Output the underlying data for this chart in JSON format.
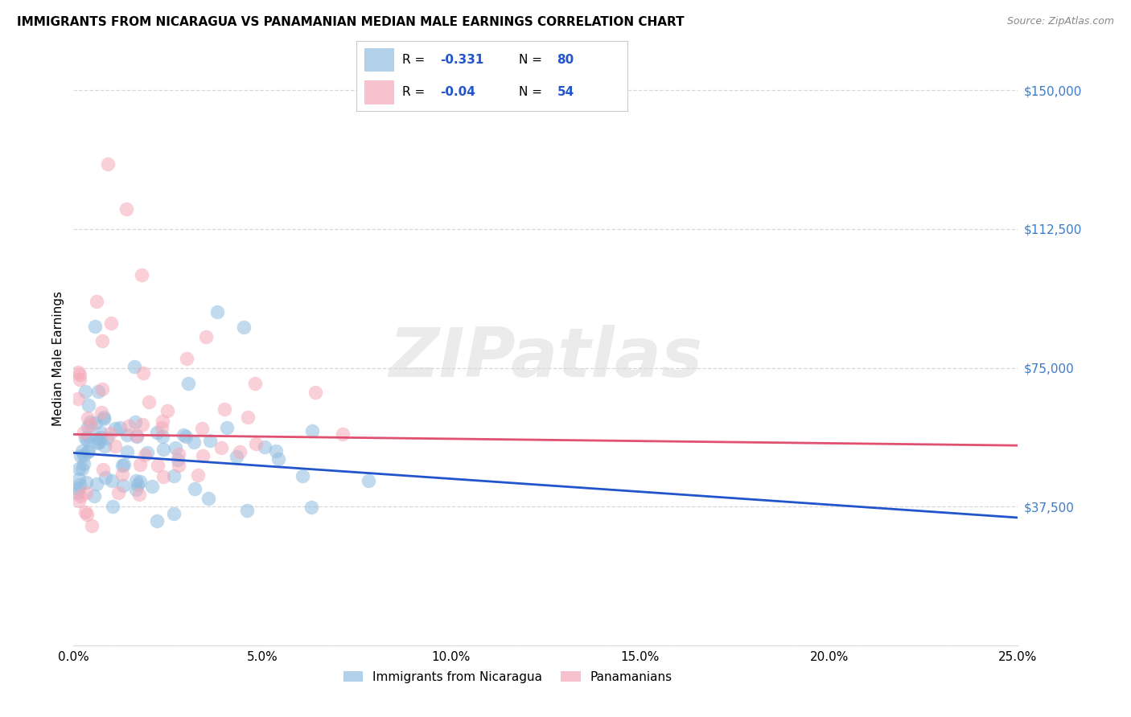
{
  "title": "IMMIGRANTS FROM NICARAGUA VS PANAMANIAN MEDIAN MALE EARNINGS CORRELATION CHART",
  "source": "Source: ZipAtlas.com",
  "ylabel": "Median Male Earnings",
  "yticks": [
    0,
    37500,
    75000,
    112500,
    150000
  ],
  "ytick_labels": [
    "",
    "$37,500",
    "$75,000",
    "$112,500",
    "$150,000"
  ],
  "xtick_vals": [
    0.0,
    0.05,
    0.1,
    0.15,
    0.2,
    0.25
  ],
  "xtick_labels": [
    "0.0%",
    "5.0%",
    "10.0%",
    "15.0%",
    "20.0%",
    "25.0%"
  ],
  "xmin": 0.0,
  "xmax": 0.25,
  "ymin": 0,
  "ymax": 155000,
  "blue_R": -0.331,
  "blue_N": 80,
  "pink_R": -0.04,
  "pink_N": 54,
  "blue_color": "#90bde0",
  "pink_color": "#f5a8b8",
  "blue_line_color": "#2255cc",
  "pink_line_color": "#e05070",
  "blue_tick_color": "#3a7cc9",
  "legend_label_blue": "Immigrants from Nicaragua",
  "legend_label_pink": "Panamanians",
  "watermark": "ZIPatlas",
  "grid_color": "#d8d8d8",
  "title_fontsize": 11,
  "tick_fontsize": 11,
  "blue_line_intercept": 52000,
  "blue_line_slope": -70000,
  "pink_line_intercept": 57000,
  "pink_line_slope": -12000
}
